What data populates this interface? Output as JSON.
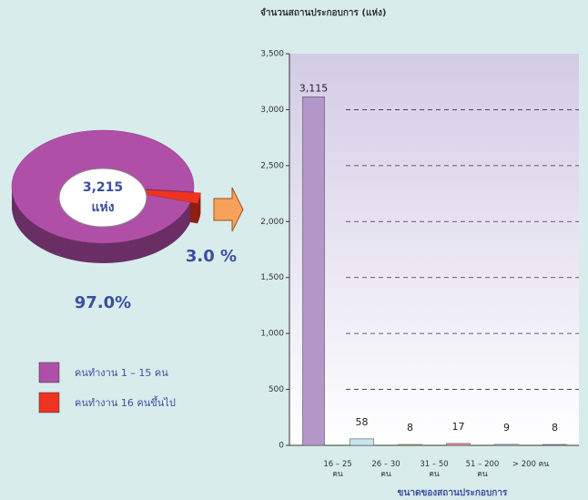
{
  "chart_data": [
    {
      "type": "pie",
      "center_labels": [
        "3,215",
        "แห่ง"
      ],
      "series": [
        {
          "name": "คนทำงาน 1 – 15 คน",
          "color": "#b04fa8",
          "values": [
            97.0
          ],
          "value_labels": [
            "97.0%"
          ]
        },
        {
          "name": "คนทำงาน 16 คนขึ้นไป",
          "color": "#ee3322",
          "values": [
            3.0
          ],
          "value_labels": [
            "3.0 %"
          ]
        }
      ]
    },
    {
      "type": "bar",
      "title": "จำนวนสถานประกอบการ (แห่ง)",
      "xlabel": "ขนาดของสถานประกอบการ",
      "categories": [
        null,
        "16 – 25 คน",
        "26 – 30 คน",
        "31 – 50 คน",
        "51 – 200 คน",
        "> 200 คน"
      ],
      "values": [
        3115,
        58,
        8,
        17,
        9,
        8
      ],
      "value_labels": [
        "3,115",
        "58",
        "8",
        "17",
        "9",
        "8"
      ],
      "colors": [
        "#b497c9",
        "#c9e6ef",
        "#e0b43c",
        "#e48fae",
        "#a9d3e6",
        "#8c86c2"
      ],
      "ylim": [
        0,
        3500
      ],
      "yticks": [
        0,
        500,
        {
          "value": 1000,
          "label": "1,000"
        },
        {
          "value": 1500,
          "label": "1,500"
        },
        {
          "value": 2000,
          "label": "2,000"
        },
        {
          "value": 2500,
          "label": "2,500"
        },
        {
          "value": 3000,
          "label": "3,000"
        },
        {
          "value": 3500,
          "label": "3,500"
        }
      ],
      "grid": true
    }
  ]
}
